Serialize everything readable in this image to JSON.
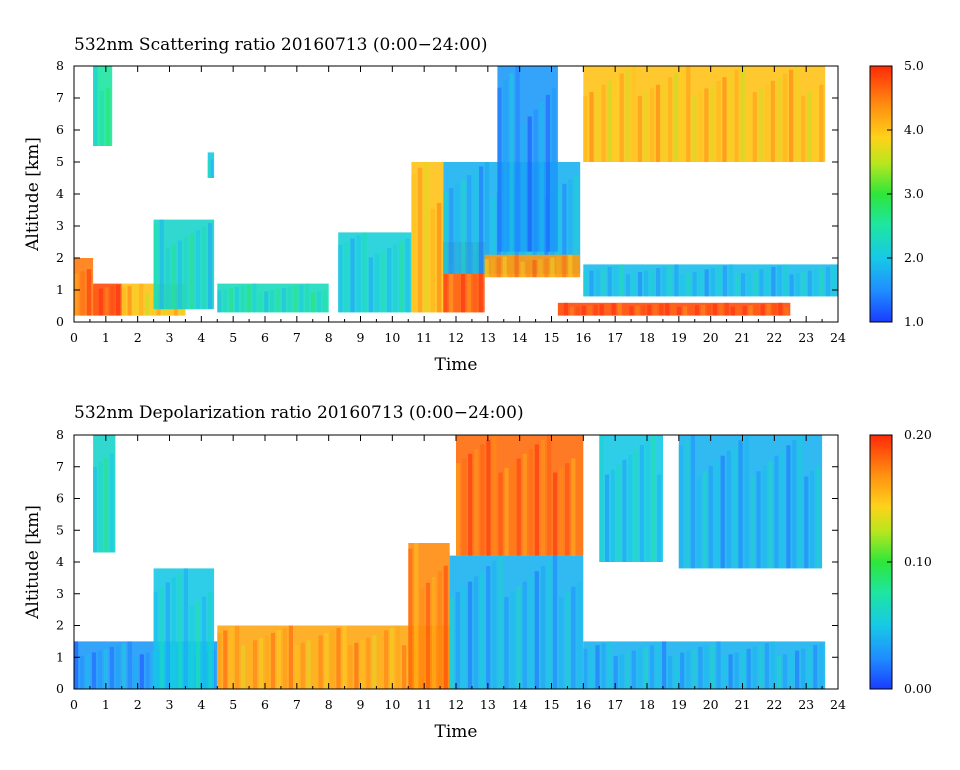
{
  "chart_data": [
    {
      "type": "heatmap",
      "title": "532nm Scattering ratio  20160713 (0:00−24:00)",
      "xlabel": "Time",
      "ylabel": "Altitude [km]",
      "xlim": [
        0,
        24
      ],
      "ylim": [
        0,
        8
      ],
      "xticks": [
        "0",
        "1",
        "2",
        "3",
        "4",
        "5",
        "6",
        "7",
        "8",
        "9",
        "10",
        "11",
        "12",
        "13",
        "14",
        "15",
        "16",
        "17",
        "18",
        "19",
        "20",
        "21",
        "22",
        "23",
        "24"
      ],
      "yticks": [
        "0",
        "1",
        "2",
        "3",
        "4",
        "5",
        "6",
        "7",
        "8"
      ],
      "colorbar": {
        "range": [
          1.0,
          5.0
        ],
        "ticks": [
          "1.0",
          "2.0",
          "3.0",
          "4.0",
          "5.0"
        ]
      },
      "features": [
        {
          "t_start": 0.6,
          "t_end": 1.2,
          "alt_bottom": 5.5,
          "alt_top": 8.0,
          "value": 2.5
        },
        {
          "t_start": 0.0,
          "t_end": 0.6,
          "alt_bottom": 0.2,
          "alt_top": 2.0,
          "value": 4.5
        },
        {
          "t_start": 0.6,
          "t_end": 1.5,
          "alt_bottom": 0.2,
          "alt_top": 1.2,
          "value": 4.8
        },
        {
          "t_start": 1.5,
          "t_end": 3.5,
          "alt_bottom": 0.2,
          "alt_top": 1.2,
          "value": 4.0
        },
        {
          "t_start": 2.5,
          "t_end": 4.4,
          "alt_bottom": 0.4,
          "alt_top": 3.2,
          "value": 2.2
        },
        {
          "t_start": 4.2,
          "t_end": 4.4,
          "alt_bottom": 4.5,
          "alt_top": 5.3,
          "value": 2.0
        },
        {
          "t_start": 4.5,
          "t_end": 8.0,
          "alt_bottom": 0.3,
          "alt_top": 1.2,
          "value": 2.3
        },
        {
          "t_start": 8.3,
          "t_end": 10.6,
          "alt_bottom": 0.3,
          "alt_top": 2.8,
          "value": 2.1
        },
        {
          "t_start": 10.6,
          "t_end": 11.6,
          "alt_bottom": 0.3,
          "alt_top": 5.0,
          "value": 4.0
        },
        {
          "t_start": 11.6,
          "t_end": 12.9,
          "alt_bottom": 0.3,
          "alt_top": 2.5,
          "value": 4.7
        },
        {
          "t_start": 11.6,
          "t_end": 15.9,
          "alt_bottom": 1.5,
          "alt_top": 5.0,
          "value": 1.8
        },
        {
          "t_start": 12.9,
          "t_end": 15.9,
          "alt_bottom": 1.4,
          "alt_top": 2.1,
          "value": 4.3
        },
        {
          "t_start": 13.3,
          "t_end": 15.2,
          "alt_bottom": 2.2,
          "alt_top": 8.0,
          "value": 1.6
        },
        {
          "t_start": 15.2,
          "t_end": 22.5,
          "alt_bottom": 0.2,
          "alt_top": 0.6,
          "value": 4.8
        },
        {
          "t_start": 16.0,
          "t_end": 23.6,
          "alt_bottom": 5.0,
          "alt_top": 8.0,
          "value": 4.0
        },
        {
          "t_start": 16.0,
          "t_end": 24.0,
          "alt_bottom": 0.8,
          "alt_top": 1.8,
          "value": 1.9
        }
      ]
    },
    {
      "type": "heatmap",
      "title": "532nm Depolarization ratio  20160713 (0:00−24:00)",
      "xlabel": "Time",
      "ylabel": "Altitude [km]",
      "xlim": [
        0,
        24
      ],
      "ylim": [
        0,
        8
      ],
      "xticks": [
        "0",
        "1",
        "2",
        "3",
        "4",
        "5",
        "6",
        "7",
        "8",
        "9",
        "10",
        "11",
        "12",
        "13",
        "14",
        "15",
        "16",
        "17",
        "18",
        "19",
        "20",
        "21",
        "22",
        "23",
        "24"
      ],
      "yticks": [
        "0",
        "1",
        "2",
        "3",
        "4",
        "5",
        "6",
        "7",
        "8"
      ],
      "colorbar": {
        "range": [
          0.0,
          0.2
        ],
        "ticks": [
          "0.00",
          "0.10",
          "0.20"
        ]
      },
      "features": [
        {
          "t_start": 0.0,
          "t_end": 4.5,
          "alt_bottom": 0.0,
          "alt_top": 1.5,
          "value": 0.03
        },
        {
          "t_start": 0.6,
          "t_end": 1.3,
          "alt_bottom": 4.3,
          "alt_top": 8.0,
          "value": 0.06
        },
        {
          "t_start": 2.5,
          "t_end": 4.4,
          "alt_bottom": 0.0,
          "alt_top": 3.8,
          "value": 0.05
        },
        {
          "t_start": 4.5,
          "t_end": 11.8,
          "alt_bottom": 0.0,
          "alt_top": 2.0,
          "value": 0.16
        },
        {
          "t_start": 10.5,
          "t_end": 11.8,
          "alt_bottom": 0.0,
          "alt_top": 4.6,
          "value": 0.17
        },
        {
          "t_start": 11.8,
          "t_end": 16.0,
          "alt_bottom": 0.0,
          "alt_top": 4.2,
          "value": 0.04
        },
        {
          "t_start": 12.0,
          "t_end": 16.0,
          "alt_bottom": 4.2,
          "alt_top": 8.0,
          "value": 0.18
        },
        {
          "t_start": 16.0,
          "t_end": 23.6,
          "alt_bottom": 0.0,
          "alt_top": 1.5,
          "value": 0.04
        },
        {
          "t_start": 19.0,
          "t_end": 23.5,
          "alt_bottom": 3.8,
          "alt_top": 8.0,
          "value": 0.04
        },
        {
          "t_start": 16.5,
          "t_end": 18.5,
          "alt_bottom": 4.0,
          "alt_top": 8.0,
          "value": 0.05
        }
      ]
    }
  ]
}
